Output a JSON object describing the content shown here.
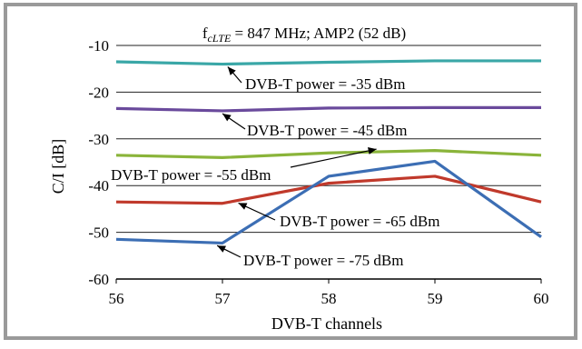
{
  "chart_data": {
    "type": "line",
    "title_main": "f",
    "title_sub": "cLTE",
    "title_rest": " = 847 MHz; AMP2 (52 dB)",
    "xlabel": "DVB-T channels",
    "ylabel": "C/I [dB]",
    "x": [
      56,
      57,
      58,
      59,
      60
    ],
    "xlim": [
      56,
      60
    ],
    "ylim": [
      -60,
      -10
    ],
    "yticks": [
      -10,
      -20,
      -30,
      -40,
      -50,
      -60
    ],
    "grid": "horizontal",
    "series": [
      {
        "name": "DVB-T power = -35 dBm",
        "color": "#3aa7a7",
        "values": [
          -13.5,
          -14.0,
          -13.6,
          -13.3,
          -13.3
        ]
      },
      {
        "name": "DVB-T power = -45 dBm",
        "color": "#6a4a9c",
        "values": [
          -23.5,
          -24.0,
          -23.4,
          -23.3,
          -23.3
        ]
      },
      {
        "name": "DVB-T power = -55 dBm",
        "color": "#8ab43a",
        "values": [
          -33.5,
          -34.0,
          -33.0,
          -32.5,
          -33.5
        ]
      },
      {
        "name": "DVB-T power = -65 dBm",
        "color": "#c0392b",
        "values": [
          -43.5,
          -43.8,
          -39.5,
          -38.0,
          -43.5
        ]
      },
      {
        "name": "DVB-T power = -75 dBm",
        "color": "#3c6eb4",
        "values": [
          -51.5,
          -52.3,
          -38.0,
          -34.8,
          -51.0
        ]
      }
    ]
  }
}
